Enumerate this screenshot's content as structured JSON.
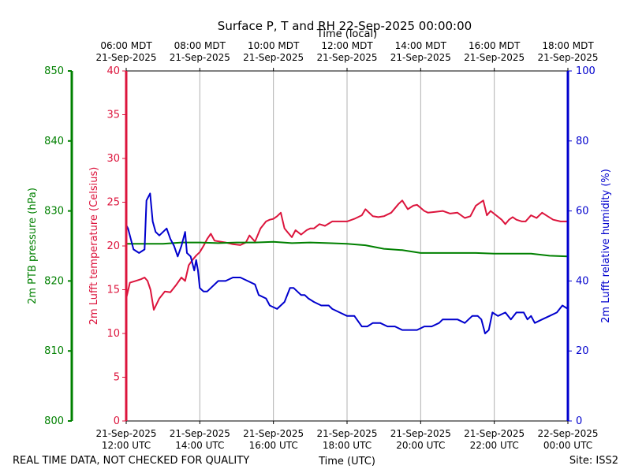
{
  "chart_data": {
    "type": "line",
    "title": "Surface P, T and RH 22-Sep-2025 00:00:00",
    "top_axis_label": "Time (local)",
    "bottom_axis_label": "Time (UTC)",
    "footer_left": "REAL TIME DATA, NOT CHECKED FOR QUALITY",
    "footer_right": "Site: ISS2",
    "x_range_hours_utc": [
      12,
      24
    ],
    "x_ticks": [
      {
        "hour": 12,
        "utc_date": "21-Sep-2025",
        "utc_time": "12:00 UTC",
        "local_time": "06:00 MDT",
        "local_date": "21-Sep-2025"
      },
      {
        "hour": 14,
        "utc_date": "21-Sep-2025",
        "utc_time": "14:00 UTC",
        "local_time": "08:00 MDT",
        "local_date": "21-Sep-2025"
      },
      {
        "hour": 16,
        "utc_date": "21-Sep-2025",
        "utc_time": "16:00 UTC",
        "local_time": "10:00 MDT",
        "local_date": "21-Sep-2025"
      },
      {
        "hour": 18,
        "utc_date": "21-Sep-2025",
        "utc_time": "18:00 UTC",
        "local_time": "12:00 MDT",
        "local_date": "21-Sep-2025"
      },
      {
        "hour": 20,
        "utc_date": "21-Sep-2025",
        "utc_time": "20:00 UTC",
        "local_time": "14:00 MDT",
        "local_date": "21-Sep-2025"
      },
      {
        "hour": 22,
        "utc_date": "21-Sep-2025",
        "utc_time": "22:00 UTC",
        "local_time": "16:00 MDT",
        "local_date": "21-Sep-2025"
      },
      {
        "hour": 24,
        "utc_date": "22-Sep-2025",
        "utc_time": "00:00 UTC",
        "local_time": "18:00 MDT",
        "local_date": "21-Sep-2025"
      }
    ],
    "axes": {
      "pressure": {
        "label": "2m PTB pressure (hPa)",
        "range": [
          800,
          850
        ],
        "ticks": [
          800,
          810,
          820,
          830,
          840,
          850
        ],
        "color": "#008000"
      },
      "temperature": {
        "label": "2m Lufft temperature (Celsius)",
        "range": [
          0,
          40
        ],
        "ticks": [
          0,
          5,
          10,
          15,
          20,
          25,
          30,
          35,
          40
        ],
        "color": "#dc143c"
      },
      "humidity": {
        "label": "2m Lufft relative humidity (%)",
        "range": [
          0,
          100
        ],
        "ticks": [
          0,
          20,
          40,
          60,
          80,
          100
        ],
        "color": "#0000cd"
      }
    },
    "series": [
      {
        "name": "2m Lufft temperature",
        "axis": "temperature",
        "color": "#dc143c",
        "x": [
          12.0,
          12.1,
          12.25,
          12.4,
          12.5,
          12.58,
          12.66,
          12.75,
          12.9,
          13.05,
          13.2,
          13.35,
          13.5,
          13.6,
          13.7,
          13.8,
          13.9,
          14.0,
          14.1,
          14.2,
          14.3,
          14.4,
          14.55,
          14.7,
          14.9,
          15.1,
          15.25,
          15.35,
          15.5,
          15.65,
          15.8,
          15.9,
          16.0,
          16.1,
          16.2,
          16.3,
          16.4,
          16.5,
          16.6,
          16.75,
          16.9,
          17.0,
          17.1,
          17.25,
          17.4,
          17.6,
          17.8,
          18.0,
          18.2,
          18.4,
          18.5,
          18.7,
          18.85,
          19.0,
          19.2,
          19.4,
          19.5,
          19.65,
          19.8,
          19.9,
          20.1,
          20.2,
          20.4,
          20.6,
          20.8,
          21.0,
          21.2,
          21.35,
          21.5,
          21.7,
          21.8,
          21.9,
          22.05,
          22.2,
          22.3,
          22.4,
          22.5,
          22.6,
          22.75,
          22.85,
          23.0,
          23.15,
          23.3,
          23.45,
          23.6,
          23.8,
          24.0
        ],
        "values": [
          14,
          15.8,
          16.0,
          16.2,
          16.4,
          16.0,
          15.0,
          12.7,
          14.0,
          14.8,
          14.7,
          15.5,
          16.4,
          16.0,
          17.8,
          18.4,
          18.9,
          19.3,
          20.0,
          20.8,
          21.4,
          20.6,
          20.5,
          20.4,
          20.2,
          20.1,
          20.4,
          21.2,
          20.5,
          22.0,
          22.8,
          23.0,
          23.1,
          23.4,
          23.8,
          22.0,
          21.5,
          21.0,
          21.8,
          21.3,
          21.8,
          22.0,
          22.0,
          22.5,
          22.3,
          22.8,
          22.8,
          22.8,
          23.1,
          23.5,
          24.2,
          23.4,
          23.3,
          23.4,
          23.8,
          24.8,
          25.2,
          24.2,
          24.6,
          24.7,
          24.0,
          23.8,
          23.9,
          24.0,
          23.7,
          23.8,
          23.2,
          23.4,
          24.6,
          25.2,
          23.5,
          24.0,
          23.5,
          23.0,
          22.5,
          23.0,
          23.3,
          23.0,
          22.8,
          22.8,
          23.5,
          23.2,
          23.8,
          23.4,
          23.0,
          22.8,
          22.8
        ]
      },
      {
        "name": "2m PTB pressure",
        "axis": "pressure",
        "color": "#008000",
        "x": [
          12.0,
          12.5,
          13.0,
          13.5,
          14.0,
          14.5,
          15.0,
          15.5,
          16.0,
          16.5,
          17.0,
          17.5,
          18.0,
          18.5,
          19.0,
          19.5,
          20.0,
          20.5,
          21.0,
          21.5,
          22.0,
          22.5,
          23.0,
          23.5,
          24.0
        ],
        "values": [
          825.3,
          825.3,
          825.3,
          825.5,
          825.5,
          825.4,
          825.5,
          825.5,
          825.6,
          825.4,
          825.5,
          825.4,
          825.3,
          825.1,
          824.6,
          824.4,
          824.0,
          824.0,
          824.0,
          824.0,
          823.9,
          823.9,
          823.9,
          823.6,
          823.5
        ]
      },
      {
        "name": "2m Lufft relative humidity",
        "axis": "humidity",
        "color": "#0000cd",
        "x": [
          12.0,
          12.05,
          12.2,
          12.35,
          12.5,
          12.55,
          12.65,
          12.72,
          12.8,
          12.9,
          13.0,
          13.1,
          13.2,
          13.3,
          13.4,
          13.5,
          13.6,
          13.65,
          13.75,
          13.85,
          13.9,
          13.95,
          14.0,
          14.1,
          14.2,
          14.3,
          14.5,
          14.7,
          14.9,
          15.1,
          15.3,
          15.5,
          15.6,
          15.8,
          15.9,
          16.1,
          16.3,
          16.45,
          16.55,
          16.75,
          16.85,
          16.95,
          17.1,
          17.3,
          17.5,
          17.6,
          17.8,
          18.0,
          18.2,
          18.4,
          18.55,
          18.7,
          18.9,
          19.1,
          19.3,
          19.5,
          19.7,
          19.9,
          20.1,
          20.3,
          20.5,
          20.6,
          20.8,
          21.0,
          21.2,
          21.4,
          21.55,
          21.65,
          21.75,
          21.85,
          21.95,
          22.1,
          22.3,
          22.45,
          22.6,
          22.8,
          22.9,
          23.0,
          23.1,
          23.3,
          23.5,
          23.7,
          23.85,
          24.0
        ],
        "values": [
          56,
          55,
          49,
          48,
          49,
          63,
          65,
          57,
          54,
          53,
          54,
          55,
          52,
          50,
          47,
          50,
          54,
          48,
          47,
          43,
          46,
          43,
          38,
          37,
          37,
          38,
          40,
          40,
          41,
          41,
          40,
          39,
          36,
          35,
          33,
          32,
          34,
          38,
          38,
          36,
          36,
          35,
          34,
          33,
          33,
          32,
          31,
          30,
          30,
          27,
          27,
          28,
          28,
          27,
          27,
          26,
          26,
          26,
          27,
          27,
          28,
          29,
          29,
          29,
          28,
          30,
          30,
          29,
          25,
          26,
          31,
          30,
          31,
          29,
          31,
          31,
          29,
          30,
          28,
          29,
          30,
          31,
          33,
          32
        ]
      }
    ]
  }
}
